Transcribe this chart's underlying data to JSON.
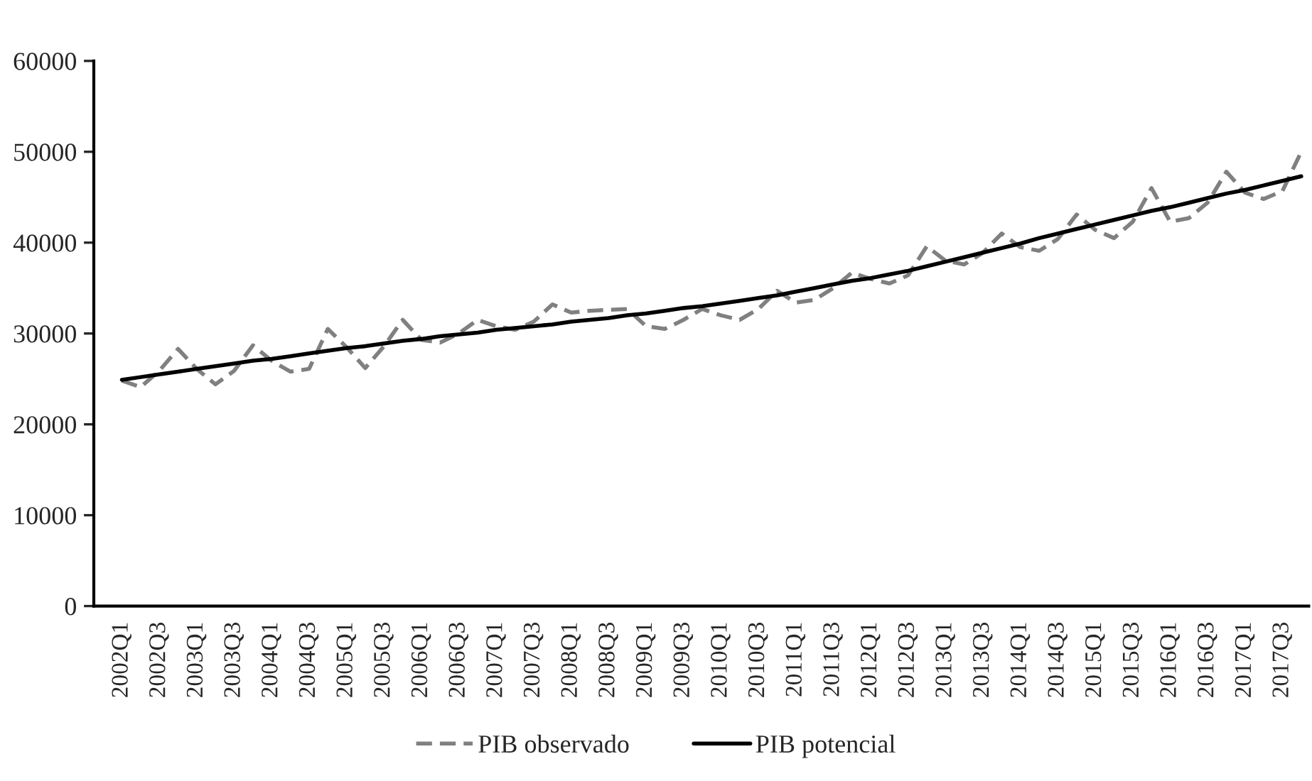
{
  "chart_data": {
    "type": "line",
    "categories": [
      "2002Q1",
      null,
      "2002Q3",
      null,
      "2003Q1",
      null,
      "2003Q3",
      null,
      "2004Q1",
      null,
      "2004Q3",
      null,
      "2005Q1",
      null,
      "2005Q3",
      null,
      "2006Q1",
      null,
      "2006Q3",
      null,
      "2007Q1",
      null,
      "2007Q3",
      null,
      "2008Q1",
      null,
      "2008Q3",
      null,
      "2009Q1",
      null,
      "2009Q3",
      null,
      "2010Q1",
      null,
      "2010Q3",
      null,
      "2011Q1",
      null,
      "2011Q3",
      null,
      "2012Q1",
      null,
      "2012Q3",
      null,
      "2013Q1",
      null,
      "2013Q3",
      null,
      "2014Q1",
      null,
      "2014Q3",
      null,
      "2015Q1",
      null,
      "2015Q3",
      null,
      "2016Q1",
      null,
      "2016Q3",
      null,
      "2017Q1",
      null,
      "2017Q3",
      null
    ],
    "series": [
      {
        "name": "PIB observado",
        "color": "#808080",
        "line_style": "dashed",
        "values": [
          24800,
          24100,
          25900,
          28300,
          26100,
          24400,
          25900,
          28700,
          27000,
          25800,
          26100,
          30500,
          28500,
          26200,
          28600,
          31500,
          29300,
          29000,
          30000,
          31500,
          30800,
          30400,
          31300,
          33200,
          32300,
          32500,
          32600,
          32700,
          30800,
          30500,
          31500,
          32700,
          32000,
          31500,
          32700,
          34700,
          33400,
          33700,
          35000,
          36700,
          36000,
          35500,
          36400,
          39600,
          38000,
          37600,
          38900,
          41000,
          39500,
          39100,
          40400,
          43100,
          41400,
          40500,
          42300,
          46000,
          42300,
          42700,
          44400,
          47800,
          45500,
          44800,
          45700,
          50000
        ]
      },
      {
        "name": "PIB potencial",
        "color": "#000000",
        "line_style": "solid",
        "values": [
          24900,
          25200,
          25500,
          25800,
          26100,
          26400,
          26700,
          27000,
          27200,
          27500,
          27800,
          28100,
          28400,
          28600,
          28900,
          29200,
          29400,
          29700,
          29900,
          30100,
          30400,
          30600,
          30800,
          31000,
          31300,
          31500,
          31700,
          32000,
          32200,
          32500,
          32800,
          33000,
          33300,
          33600,
          33900,
          34200,
          34600,
          35000,
          35400,
          35800,
          36100,
          36500,
          36900,
          37400,
          37900,
          38400,
          38900,
          39400,
          39900,
          40500,
          41000,
          41500,
          42000,
          42500,
          43000,
          43500,
          43900,
          44400,
          44900,
          45400,
          45800,
          46300,
          46800,
          47300
        ]
      }
    ],
    "ylim": [
      0,
      60000
    ],
    "yticks": [
      0,
      10000,
      20000,
      30000,
      40000,
      50000,
      60000
    ],
    "grid": false,
    "legend": "bottom"
  }
}
